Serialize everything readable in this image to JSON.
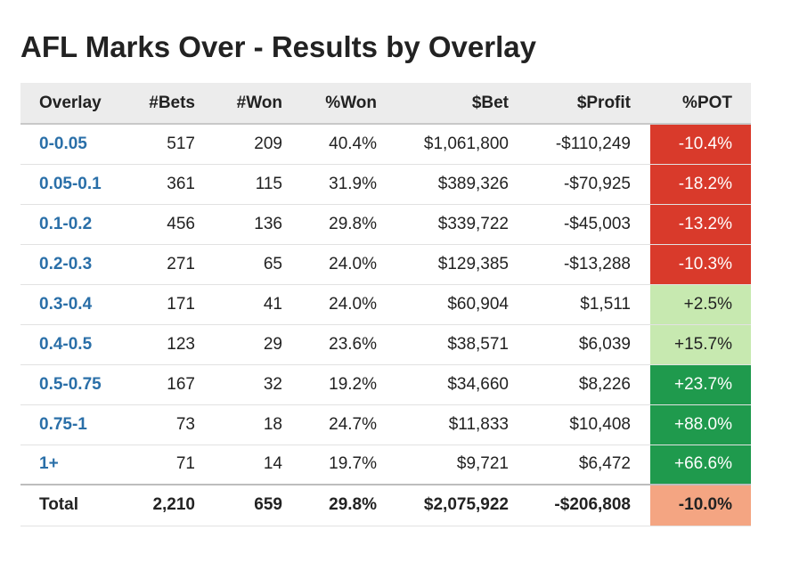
{
  "title": "AFL Marks Over - Results by Overlay",
  "table": {
    "headers": [
      "Overlay",
      "#Bets",
      "#Won",
      "%Won",
      "$Bet",
      "$Profit",
      "%POT"
    ],
    "rows": [
      {
        "overlay": "0-0.05",
        "bets": "517",
        "won": "209",
        "pct_won": "40.4%",
        "bet": "$1,061,800",
        "profit": "-$110,249",
        "pot": "-10.4%",
        "pot_color": "#d93a2b",
        "pot_text": "#ffffff"
      },
      {
        "overlay": "0.05-0.1",
        "bets": "361",
        "won": "115",
        "pct_won": "31.9%",
        "bet": "$389,326",
        "profit": "-$70,925",
        "pot": "-18.2%",
        "pot_color": "#d93a2b",
        "pot_text": "#ffffff"
      },
      {
        "overlay": "0.1-0.2",
        "bets": "456",
        "won": "136",
        "pct_won": "29.8%",
        "bet": "$339,722",
        "profit": "-$45,003",
        "pot": "-13.2%",
        "pot_color": "#d93a2b",
        "pot_text": "#ffffff"
      },
      {
        "overlay": "0.2-0.3",
        "bets": "271",
        "won": "65",
        "pct_won": "24.0%",
        "bet": "$129,385",
        "profit": "-$13,288",
        "pot": "-10.3%",
        "pot_color": "#d93a2b",
        "pot_text": "#ffffff"
      },
      {
        "overlay": "0.3-0.4",
        "bets": "171",
        "won": "41",
        "pct_won": "24.0%",
        "bet": "$60,904",
        "profit": "$1,511",
        "pot": "+2.5%",
        "pot_color": "#c7e9b0",
        "pot_text": "#222222"
      },
      {
        "overlay": "0.4-0.5",
        "bets": "123",
        "won": "29",
        "pct_won": "23.6%",
        "bet": "$38,571",
        "profit": "$6,039",
        "pot": "+15.7%",
        "pot_color": "#c7e9b0",
        "pot_text": "#222222"
      },
      {
        "overlay": "0.5-0.75",
        "bets": "167",
        "won": "32",
        "pct_won": "19.2%",
        "bet": "$34,660",
        "profit": "$8,226",
        "pot": "+23.7%",
        "pot_color": "#1f9a4d",
        "pot_text": "#ffffff"
      },
      {
        "overlay": "0.75-1",
        "bets": "73",
        "won": "18",
        "pct_won": "24.7%",
        "bet": "$11,833",
        "profit": "$10,408",
        "pot": "+88.0%",
        "pot_color": "#1f9a4d",
        "pot_text": "#ffffff"
      },
      {
        "overlay": "1+",
        "bets": "71",
        "won": "14",
        "pct_won": "19.7%",
        "bet": "$9,721",
        "profit": "$6,472",
        "pot": "+66.6%",
        "pot_color": "#1f9a4d",
        "pot_text": "#ffffff"
      }
    ],
    "total": {
      "label": "Total",
      "bets": "2,210",
      "won": "659",
      "pct_won": "29.8%",
      "bet": "$2,075,922",
      "profit": "-$206,808",
      "pot": "-10.0%",
      "pot_color": "#f4a582",
      "pot_text": "#222222"
    }
  },
  "colors": {
    "link": "#2a6fa8",
    "header_bg": "#ececec",
    "negative": "#d93a2b",
    "slightly_positive": "#c7e9b0",
    "strongly_positive": "#1f9a4d",
    "total_negative": "#f4a582"
  }
}
